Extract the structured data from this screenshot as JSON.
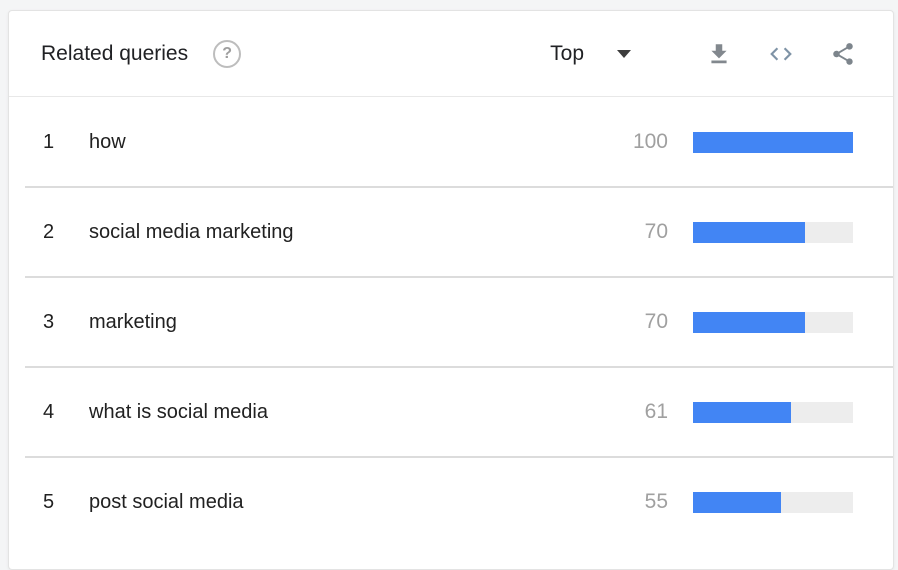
{
  "header": {
    "title": "Related queries",
    "help_glyph": "?",
    "sort": {
      "selected": "Top"
    },
    "icons": {
      "help": "question-mark-circle-icon",
      "caret": "triangle-down-icon",
      "download": "download-icon",
      "embed": "code-brackets-icon",
      "share": "share-nodes-icon"
    }
  },
  "colors": {
    "bar_fill": "#4285f4",
    "bar_track": "#ededed",
    "value_text": "#a0a0a0",
    "text": "#212121",
    "icon_gray": "#7d858c",
    "divider": "#dcdcdc"
  },
  "rows": [
    {
      "rank": "1",
      "query": "how",
      "value": 100
    },
    {
      "rank": "2",
      "query": "social media marketing",
      "value": 70
    },
    {
      "rank": "3",
      "query": "marketing",
      "value": 70
    },
    {
      "rank": "4",
      "query": "what is social media",
      "value": 61
    },
    {
      "rank": "5",
      "query": "post social media",
      "value": 55
    }
  ],
  "chart_data": {
    "type": "bar",
    "title": "Related queries",
    "categories": [
      "how",
      "social media marketing",
      "marketing",
      "what is social media",
      "post social media"
    ],
    "values": [
      100,
      70,
      70,
      61,
      55
    ],
    "xlabel": "",
    "ylabel": "",
    "xlim": [
      0,
      100
    ],
    "legend": "none",
    "orientation": "horizontal"
  }
}
